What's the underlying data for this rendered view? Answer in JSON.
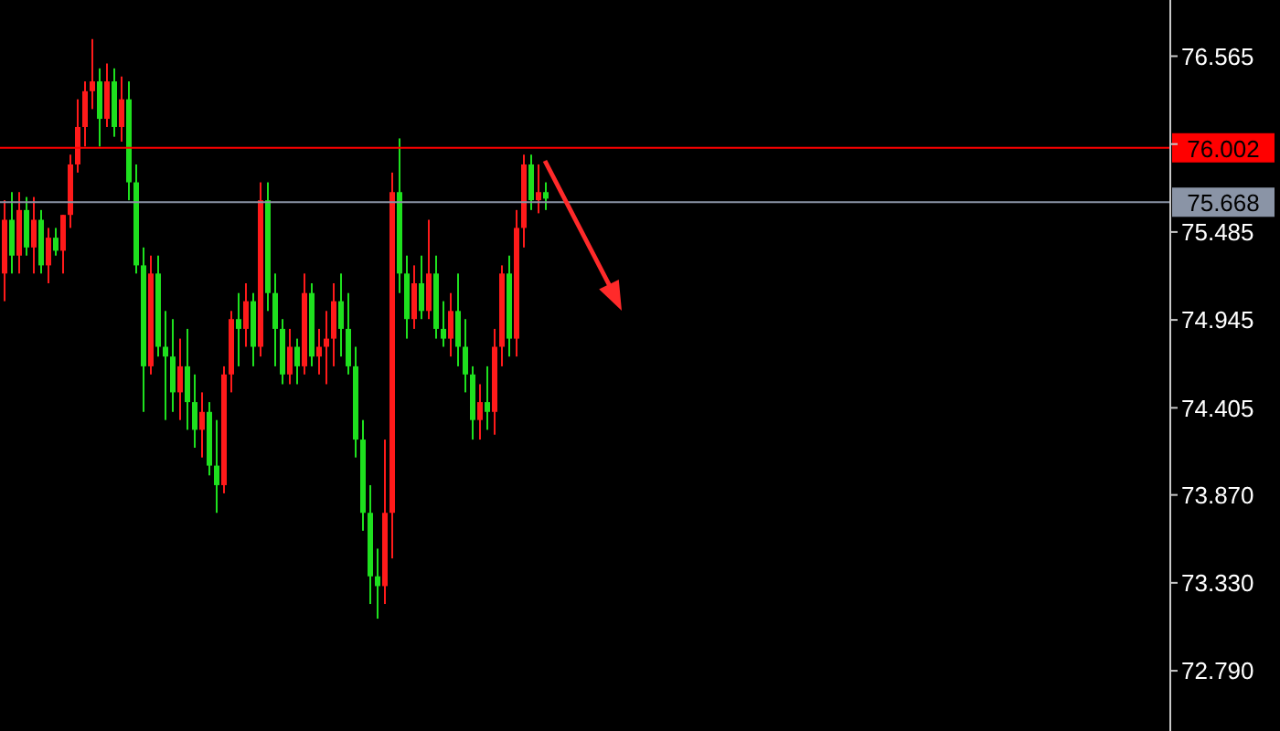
{
  "chart_data": {
    "type": "candlestick",
    "categories": [
      null,
      null,
      null,
      null,
      null,
      null,
      null,
      null,
      null,
      null,
      null,
      null,
      null,
      null,
      null,
      null,
      null,
      null,
      null,
      null,
      null,
      null,
      null,
      null,
      null,
      null,
      null,
      null,
      null,
      null,
      null,
      null,
      null,
      null,
      null,
      null,
      null,
      null,
      null,
      null,
      null,
      null,
      null,
      null,
      null,
      null,
      null,
      null,
      null,
      null,
      null,
      null,
      null,
      null,
      null,
      null,
      null,
      null,
      null,
      null,
      null,
      null,
      null,
      null,
      null,
      null,
      null,
      null,
      null,
      null,
      null,
      null,
      null,
      null,
      null,
      null,
      null,
      null,
      null,
      null,
      null,
      null,
      null,
      null,
      null,
      null,
      null,
      null,
      null,
      null,
      null,
      null,
      null,
      null,
      null,
      null,
      null,
      null,
      null,
      null,
      null,
      null,
      null,
      null,
      null,
      null,
      null,
      null,
      null,
      null,
      null,
      null,
      null,
      null,
      null,
      null,
      null,
      null,
      null,
      null,
      null,
      null,
      null,
      null,
      null,
      null,
      null,
      null,
      null,
      null,
      null,
      null,
      null,
      null,
      null,
      null,
      null,
      null,
      null,
      null,
      null,
      null,
      null,
      null,
      null,
      null,
      null,
      null,
      null,
      null,
      null,
      null,
      null,
      null,
      null,
      null,
      null,
      null,
      null,
      null
    ],
    "ohlc": [
      [
        75.23,
        75.68,
        75.06,
        75.56
      ],
      [
        75.56,
        75.73,
        75.23,
        75.34
      ],
      [
        75.34,
        75.73,
        75.23,
        75.62
      ],
      [
        75.62,
        75.7,
        75.34,
        75.39
      ],
      [
        75.39,
        75.7,
        75.23,
        75.56
      ],
      [
        75.56,
        75.62,
        75.23,
        75.28
      ],
      [
        75.28,
        75.51,
        75.17,
        75.45
      ],
      [
        75.45,
        75.51,
        75.34,
        75.37
      ],
      [
        75.37,
        75.59,
        75.23,
        75.59
      ],
      [
        75.59,
        75.96,
        75.51,
        75.9
      ],
      [
        75.9,
        76.3,
        75.85,
        76.13
      ],
      [
        76.13,
        76.41,
        76.01,
        76.35
      ],
      [
        76.35,
        76.67,
        76.24,
        76.41
      ],
      [
        76.41,
        76.49,
        76.01,
        76.18
      ],
      [
        76.18,
        76.52,
        76.13,
        76.41
      ],
      [
        76.41,
        76.49,
        76.07,
        76.13
      ],
      [
        76.13,
        76.44,
        76.04,
        76.3
      ],
      [
        76.3,
        76.41,
        75.68,
        75.79
      ],
      [
        75.79,
        75.9,
        75.23,
        75.28
      ],
      [
        75.28,
        75.39,
        74.38,
        74.66
      ],
      [
        74.66,
        75.34,
        74.61,
        75.23
      ],
      [
        75.23,
        75.34,
        74.72,
        74.78
      ],
      [
        74.78,
        75.0,
        74.33,
        74.72
      ],
      [
        74.72,
        74.95,
        74.38,
        74.5
      ],
      [
        74.5,
        74.83,
        74.33,
        74.66
      ],
      [
        74.66,
        74.89,
        74.27,
        74.44
      ],
      [
        74.44,
        74.61,
        74.16,
        74.27
      ],
      [
        74.27,
        74.5,
        74.1,
        74.38
      ],
      [
        74.38,
        74.44,
        73.99,
        74.05
      ],
      [
        74.05,
        74.33,
        73.76,
        73.93
      ],
      [
        73.93,
        74.66,
        73.88,
        74.61
      ],
      [
        74.61,
        75.0,
        74.5,
        74.95
      ],
      [
        74.95,
        75.11,
        74.66,
        74.89
      ],
      [
        74.89,
        75.17,
        74.78,
        75.06
      ],
      [
        75.06,
        75.11,
        74.66,
        74.78
      ],
      [
        74.78,
        75.79,
        74.72,
        75.68
      ],
      [
        75.68,
        75.79,
        75.0,
        75.11
      ],
      [
        75.11,
        75.23,
        74.66,
        74.89
      ],
      [
        74.89,
        74.95,
        74.55,
        74.61
      ],
      [
        74.61,
        74.89,
        74.55,
        74.78
      ],
      [
        74.78,
        74.83,
        74.55,
        74.66
      ],
      [
        74.66,
        75.23,
        74.61,
        75.11
      ],
      [
        75.11,
        75.17,
        74.66,
        74.72
      ],
      [
        74.72,
        74.89,
        74.61,
        74.78
      ],
      [
        74.78,
        75.0,
        74.55,
        74.83
      ],
      [
        74.83,
        75.17,
        74.66,
        75.06
      ],
      [
        75.06,
        75.23,
        74.72,
        74.89
      ],
      [
        74.89,
        75.11,
        74.61,
        74.66
      ],
      [
        74.66,
        74.78,
        74.1,
        74.21
      ],
      [
        74.21,
        74.33,
        73.65,
        73.76
      ],
      [
        73.76,
        73.93,
        73.2,
        73.37
      ],
      [
        73.37,
        73.54,
        73.11,
        73.31
      ],
      [
        73.31,
        74.21,
        73.2,
        73.76
      ],
      [
        73.76,
        75.85,
        73.48,
        75.73
      ],
      [
        75.73,
        76.06,
        75.11,
        75.23
      ],
      [
        75.23,
        75.34,
        74.83,
        74.95
      ],
      [
        74.95,
        75.28,
        74.89,
        75.17
      ],
      [
        75.17,
        75.34,
        74.95,
        75.0
      ],
      [
        75.0,
        75.56,
        74.95,
        75.23
      ],
      [
        75.23,
        75.34,
        74.83,
        74.89
      ],
      [
        74.89,
        75.06,
        74.78,
        74.83
      ],
      [
        74.83,
        75.11,
        74.72,
        75.0
      ],
      [
        75.0,
        75.23,
        74.66,
        74.78
      ],
      [
        74.78,
        74.95,
        74.5,
        74.61
      ],
      [
        74.61,
        74.66,
        74.21,
        74.33
      ],
      [
        74.33,
        74.55,
        74.21,
        74.44
      ],
      [
        74.44,
        74.66,
        74.27,
        74.38
      ],
      [
        74.38,
        74.89,
        74.24,
        74.78
      ],
      [
        74.78,
        75.28,
        74.66,
        75.23
      ],
      [
        75.23,
        75.34,
        74.72,
        74.83
      ],
      [
        74.83,
        75.62,
        74.72,
        75.51
      ],
      [
        75.51,
        75.96,
        75.39,
        75.9
      ],
      [
        75.9,
        75.96,
        75.62,
        75.68
      ],
      [
        75.68,
        75.9,
        75.6,
        75.73
      ],
      [
        75.73,
        75.79,
        75.62,
        75.69
      ],
      null,
      null,
      null,
      null,
      null,
      null,
      null,
      null,
      null,
      null,
      null,
      null,
      null,
      null,
      null,
      null,
      null,
      null,
      null,
      null,
      null,
      null,
      null,
      null,
      null,
      null,
      null,
      null,
      null,
      null,
      null,
      null,
      null,
      null,
      null,
      null,
      null,
      null,
      null,
      null,
      null,
      null,
      null,
      null,
      null,
      null,
      null,
      null,
      null,
      null,
      null,
      null,
      null,
      null,
      null,
      null,
      null,
      null,
      null,
      null,
      null,
      null,
      null,
      null,
      null,
      null,
      null,
      null,
      null,
      null,
      null,
      null,
      null,
      null,
      null,
      null,
      null,
      null,
      null,
      null,
      null,
      null,
      null,
      null,
      null
    ],
    "colors": [
      "#ff1a1a",
      "#1ee01e",
      "#ff1a1a",
      "#1ee01e",
      "#ff1a1a",
      "#1ee01e",
      "#ff1a1a",
      "#1ee01e",
      "#ff1a1a",
      "#ff1a1a",
      "#ff1a1a",
      "#ff1a1a",
      "#ff1a1a",
      "#1ee01e",
      "#ff1a1a",
      "#1ee01e",
      "#ff1a1a",
      "#1ee01e",
      "#1ee01e",
      "#1ee01e",
      "#ff1a1a",
      "#1ee01e",
      "#1ee01e",
      "#1ee01e",
      "#ff1a1a",
      "#1ee01e",
      "#1ee01e",
      "#ff1a1a",
      "#1ee01e",
      "#1ee01e",
      "#ff1a1a",
      "#ff1a1a",
      "#1ee01e",
      "#ff1a1a",
      "#1ee01e",
      "#ff1a1a",
      "#1ee01e",
      "#1ee01e",
      "#1ee01e",
      "#ff1a1a",
      "#1ee01e",
      "#ff1a1a",
      "#1ee01e",
      "#ff1a1a",
      "#ff1a1a",
      "#ff1a1a",
      "#1ee01e",
      "#1ee01e",
      "#1ee01e",
      "#1ee01e",
      "#1ee01e",
      "#1ee01e",
      "#ff1a1a",
      "#ff1a1a",
      "#1ee01e",
      "#1ee01e",
      "#ff1a1a",
      "#1ee01e",
      "#ff1a1a",
      "#1ee01e",
      "#1ee01e",
      "#ff1a1a",
      "#1ee01e",
      "#1ee01e",
      "#1ee01e",
      "#ff1a1a",
      "#1ee01e",
      "#ff1a1a",
      "#ff1a1a",
      "#1ee01e",
      "#ff1a1a",
      "#ff1a1a",
      "#1ee01e",
      "#ff1a1a",
      "#1ee01e",
      null,
      null,
      null,
      null,
      null,
      null,
      null,
      null,
      null,
      null,
      null,
      null,
      null,
      null,
      null,
      null,
      null,
      null,
      null,
      null,
      null,
      null,
      null,
      null,
      null,
      null,
      null,
      null,
      null,
      null,
      null,
      null,
      null,
      null,
      null,
      null,
      null,
      null,
      null,
      null,
      null,
      null,
      null,
      null,
      null,
      null,
      null,
      null,
      null,
      null,
      null,
      null,
      null,
      null,
      null,
      null,
      null,
      null,
      null,
      null,
      null,
      null,
      null,
      null,
      null,
      null,
      null,
      null,
      null,
      null,
      null,
      null,
      null,
      null,
      null,
      null,
      null,
      null,
      null,
      null,
      null,
      null,
      null,
      null,
      null
    ],
    "ylim": [
      72.42,
      76.91
    ],
    "yticks": [
      76.565,
      {
        "value": 76.025,
        "label": null
      },
      75.485,
      74.945,
      74.405,
      {
        "value": 73.87,
        "label": "73.870"
      },
      {
        "value": 73.33,
        "label": "73.330"
      },
      {
        "value": 72.79,
        "label": "72.790"
      }
    ],
    "ref_lines": [
      {
        "axis": "y",
        "value": 76.002,
        "label": "76.002",
        "color": "#ff0000"
      },
      {
        "axis": "y",
        "value": 75.668,
        "label": "75.668",
        "color": "#8a94a6"
      }
    ],
    "tick_labels": "y"
  }
}
